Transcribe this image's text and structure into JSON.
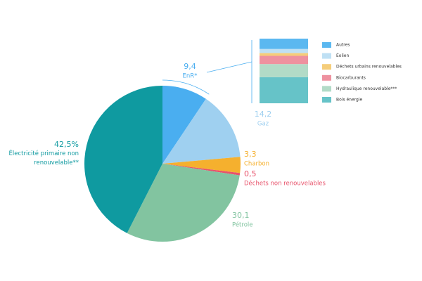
{
  "chart_data": {
    "type": "pie",
    "categories": [
      "EnR*",
      "Gaz",
      "Charbon",
      "Déchets non renouvelables",
      "Pétrole",
      "Électricité primaire non renouvelable**"
    ],
    "values": [
      9.4,
      14.2,
      3.3,
      0.5,
      30.1,
      42.5
    ],
    "value_labels": [
      "9,4",
      "14,2",
      "3,3",
      "0,5",
      "30,1",
      "42,5%"
    ],
    "colors": [
      "#4aaef0",
      "#9fd0f0",
      "#f5b02e",
      "#e8536b",
      "#82c4a0",
      "#0f9aa0"
    ],
    "breakdown": {
      "type": "bar",
      "series": [
        {
          "name": "Autres",
          "color": "#5bb8f0",
          "values": [
            1.5
          ]
        },
        {
          "name": "Éolien",
          "color": "#bfe0f4",
          "values": [
            0.6
          ]
        },
        {
          "name": "Déchets urbains renouvelables",
          "color": "#f5cd7a",
          "values": [
            0.4
          ]
        },
        {
          "name": "Biocarburants",
          "color": "#ee919f",
          "values": [
            1.2
          ]
        },
        {
          "name": "Hydraulique renouvelable***",
          "color": "#b2dbc7",
          "values": [
            1.9
          ]
        },
        {
          "name": "Bois énergie",
          "color": "#66c3c8",
          "values": [
            3.8
          ]
        }
      ]
    }
  }
}
